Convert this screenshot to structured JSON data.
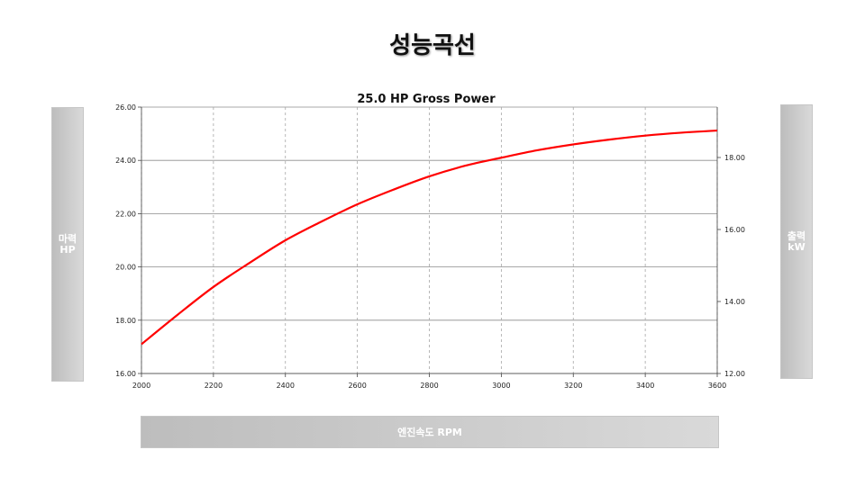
{
  "page": {
    "title": "성능곡선"
  },
  "panels": {
    "left_label_line1": "마력",
    "left_label_line2": "HP",
    "right_label_line1": "출력",
    "right_label_line2": "kW",
    "bottom_label": "엔진속도 RPM"
  },
  "chart_data": {
    "type": "line",
    "title": "25.0 HP Gross Power",
    "xlabel": "엔진속도 RPM",
    "ylabel": "마력 HP",
    "y2label": "출력 kW",
    "xlim": [
      2000,
      3600
    ],
    "ylim": [
      16.0,
      26.0
    ],
    "y2lim": [
      12.0,
      19.4
    ],
    "x_ticks": [
      "2000",
      "2200",
      "2400",
      "2600",
      "2800",
      "3000",
      "3200",
      "3400",
      "3600"
    ],
    "y_ticks": [
      "16.00",
      "18.00",
      "20.00",
      "22.00",
      "24.00",
      "26.00"
    ],
    "y2_ticks": [
      "12.00",
      "14.00",
      "16.00",
      "18.00"
    ],
    "grid": {
      "horizontal": "solid",
      "vertical": "dashed"
    },
    "series": [
      {
        "color": "#ff0000",
        "x": [
          2000,
          2100,
          2200,
          2300,
          2400,
          2500,
          2600,
          2700,
          2800,
          2900,
          3000,
          3100,
          3200,
          3300,
          3400,
          3500,
          3600
        ],
        "y": [
          17.1,
          18.2,
          19.25,
          20.15,
          21.0,
          21.7,
          22.35,
          22.9,
          23.4,
          23.8,
          24.1,
          24.38,
          24.6,
          24.78,
          24.93,
          25.04,
          25.12
        ]
      }
    ]
  }
}
